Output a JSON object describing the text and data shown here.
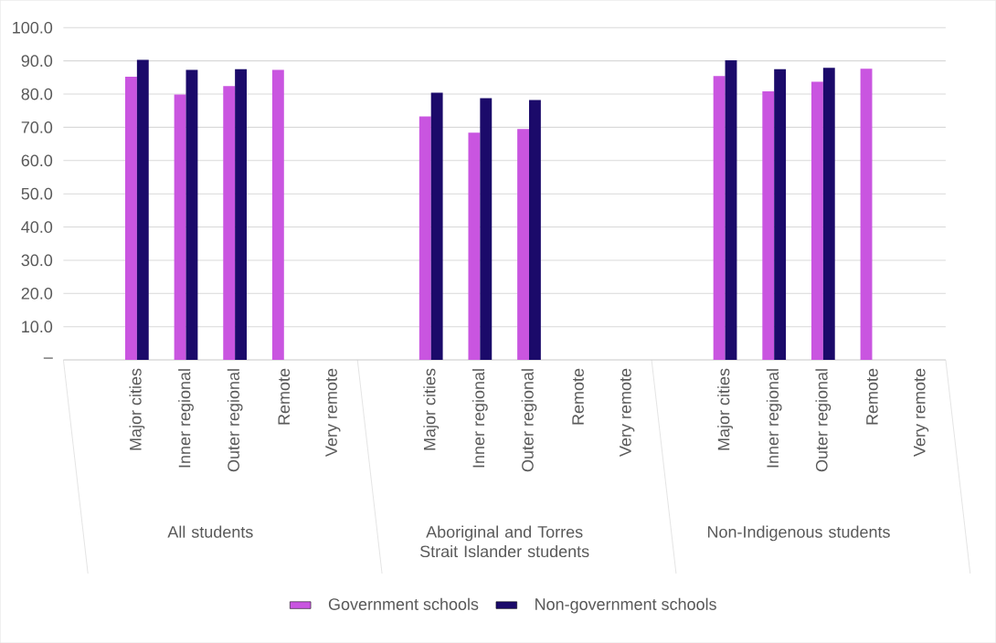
{
  "chart_data": {
    "type": "bar",
    "categories": [
      null,
      "Major cities",
      "Inner regional",
      "Outer regional",
      "Remote",
      "Very remote",
      null,
      "Major cities",
      "Inner regional",
      "Outer regional",
      "Remote",
      "Very remote",
      null,
      "Major cities",
      "Inner regional",
      "Outer regional",
      "Remote",
      "Very remote"
    ],
    "series": [
      {
        "name": "Government schools",
        "color": "#c955e0",
        "values": [
          null,
          85.2,
          79.9,
          82.4,
          87.3,
          null,
          null,
          73.3,
          68.4,
          69.5,
          null,
          null,
          null,
          85.4,
          80.8,
          83.7,
          87.6,
          null
        ]
      },
      {
        "name": "Non-government schools",
        "color": "#1b0a6a",
        "values": [
          null,
          90.3,
          87.3,
          87.5,
          null,
          null,
          null,
          80.4,
          78.8,
          78.2,
          null,
          null,
          null,
          90.2,
          87.5,
          87.9,
          null,
          null
        ]
      }
    ],
    "ylim": [
      0,
      100
    ],
    "yticks": [
      {
        "value": 0,
        "label": "–"
      },
      {
        "value": 10,
        "label": "10.0"
      },
      {
        "value": 20,
        "label": "20.0"
      },
      {
        "value": 30,
        "label": "30.0"
      },
      {
        "value": 40,
        "label": "40.0"
      },
      {
        "value": 50,
        "label": "50.0"
      },
      {
        "value": 60,
        "label": "60.0"
      },
      {
        "value": 70,
        "label": "70.0"
      },
      {
        "value": 80,
        "label": "80.0"
      },
      {
        "value": 90,
        "label": "90.0"
      },
      {
        "value": 100,
        "label": "100.0"
      }
    ],
    "annotations": [
      "All students",
      "Aboriginal and Torres Strait Islander students",
      "Non-Indigenous students"
    ],
    "grid": "y",
    "legend": "bottom"
  }
}
